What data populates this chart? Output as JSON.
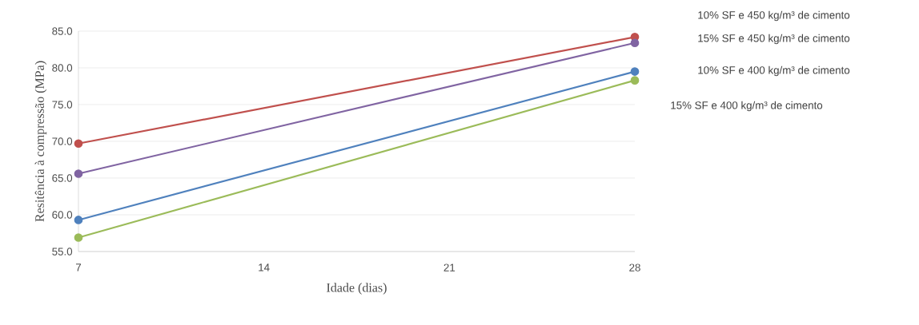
{
  "chart_data": {
    "type": "line",
    "xlabel": "Idade (dias)",
    "ylabel": "Resitência à compressão (MPa)",
    "x": [
      7,
      28
    ],
    "series": [
      {
        "name": "10% SF e 450  kg/m³ de cimento",
        "color": "#c0504d",
        "values": [
          69.7,
          84.2
        ]
      },
      {
        "name": "15% SF e 450  kg/m³ de cimento",
        "color": "#8064a2",
        "values": [
          65.6,
          83.4
        ]
      },
      {
        "name": "10% SF e 400  kg/m³ de cimento",
        "color": "#4f81bd",
        "values": [
          59.3,
          79.5
        ]
      },
      {
        "name": "15% SF e 400  kg/m³ de cimento",
        "color": "#9bbb59",
        "values": [
          56.9,
          78.3
        ]
      }
    ],
    "xlim": [
      7,
      28
    ],
    "xticks": [
      7,
      14,
      21,
      28
    ],
    "ylim": [
      55,
      85
    ],
    "yticks": [
      {
        "value": 55,
        "label": "55.0"
      },
      {
        "value": 60,
        "label": "60.0"
      },
      {
        "value": 65,
        "label": "65.0"
      },
      {
        "value": 70,
        "label": "70.0"
      },
      {
        "value": 75,
        "label": "75.0"
      },
      {
        "value": 80,
        "label": "80.0"
      },
      {
        "value": 85,
        "label": "85.0"
      }
    ],
    "grid": "y",
    "marker": "circle",
    "line_style": "solid"
  }
}
